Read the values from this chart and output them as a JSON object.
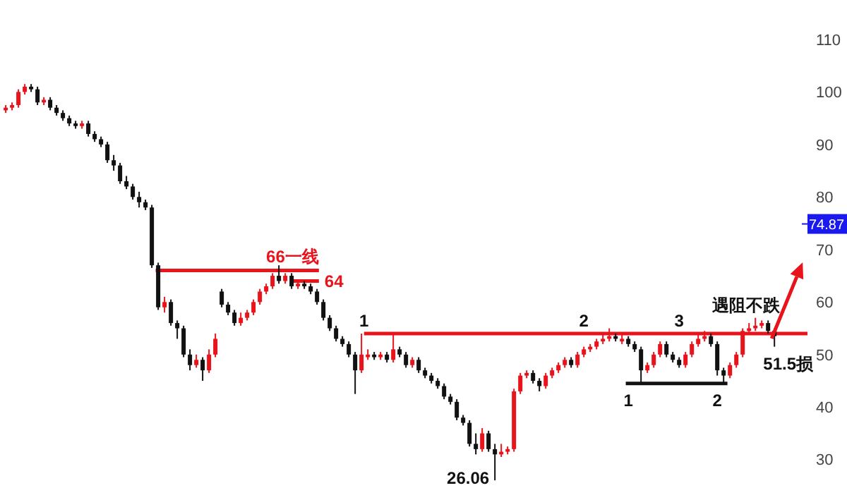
{
  "chart_data": {
    "type": "candlestick",
    "colors": [
      "#e8141c",
      "#e8141c",
      "#e8141c",
      "#e8141c",
      "#111111",
      "#111111",
      "#e8141c",
      "#111111",
      "#111111",
      "#111111",
      "#111111",
      "#111111",
      "#e8141c",
      "#111111",
      "#111111",
      "#111111",
      "#111111",
      "#111111",
      "#111111",
      "#111111",
      "#111111",
      "#111111",
      "#111111",
      "#111111",
      "#111111",
      "#e8141c",
      "#111111",
      "#111111",
      "#111111",
      "#111111",
      "#e8141c",
      "#111111",
      "#e8141c",
      "#e8141c",
      "#111111",
      "#111111",
      "#111111",
      "#e8141c",
      "#e8141c",
      "#e8141c",
      "#e8141c",
      "#e8141c",
      "#e8141c",
      "#111111",
      "#e8141c",
      "#111111",
      "#e8141c",
      "#111111",
      "#111111",
      "#111111",
      "#111111",
      "#111111",
      "#111111",
      "#111111",
      "#111111",
      "#111111",
      "#e8141c",
      "#e8141c",
      "#111111",
      "#e8141c",
      "#111111",
      "#e8141c",
      "#111111",
      "#111111",
      "#e8141c",
      "#111111",
      "#111111",
      "#111111",
      "#111111",
      "#111111",
      "#111111",
      "#111111",
      "#111111",
      "#111111",
      "#111111",
      "#e8141c",
      "#111111",
      "#111111",
      "#e8141c",
      "#e8141c",
      "#e8141c",
      "#e8141c",
      "#e8141c",
      "#111111",
      "#111111",
      "#e8141c",
      "#e8141c",
      "#e8141c",
      "#e8141c",
      "#111111",
      "#e8141c",
      "#e8141c",
      "#e8141c",
      "#e8141c",
      "#e8141c",
      "#e8141c",
      "#111111",
      "#e8141c",
      "#111111",
      "#111111",
      "#111111",
      "#e8141c",
      "#e8141c",
      "#e8141c",
      "#111111",
      "#111111",
      "#111111",
      "#e8141c",
      "#e8141c",
      "#e8141c",
      "#e8141c",
      "#111111",
      "#111111",
      "#111111",
      "#e8141c",
      "#e8141c",
      "#e8141c",
      "#e8141c",
      "#e8141c",
      "#e8141c",
      "#111111",
      "#111111"
    ],
    "categories": [
      null,
      null,
      null,
      null,
      null,
      null,
      null,
      null,
      null,
      null,
      null,
      null,
      null,
      null,
      null,
      null,
      null,
      null,
      null,
      null,
      null,
      null,
      null,
      null,
      null,
      null,
      null,
      null,
      null,
      null,
      null,
      null,
      null,
      null,
      null,
      null,
      null,
      null,
      null,
      null,
      null,
      null,
      null,
      null,
      null,
      null,
      null,
      null,
      null,
      null,
      null,
      null,
      null,
      null,
      null,
      null,
      null,
      null,
      null,
      null,
      null,
      null,
      null,
      null,
      null,
      null,
      null,
      null,
      null,
      null,
      null,
      null,
      null,
      null,
      null,
      null,
      null,
      null,
      null,
      null,
      null,
      null,
      null,
      null,
      null,
      null,
      null,
      null,
      null,
      null,
      null,
      null,
      null,
      null,
      null,
      null,
      null,
      null,
      null,
      null,
      null,
      null,
      null,
      null,
      null,
      null,
      null,
      null,
      null,
      null,
      null,
      null,
      null,
      null,
      null,
      null,
      null,
      null,
      null,
      null,
      null,
      null
    ],
    "ohlc": [
      [
        96.5,
        97.5,
        96,
        97
      ],
      [
        97,
        98,
        96.5,
        97.5
      ],
      [
        97.5,
        100.5,
        97,
        100
      ],
      [
        100,
        101.5,
        99.5,
        101
      ],
      [
        101,
        101.5,
        100,
        100.5
      ],
      [
        100.5,
        101,
        97.5,
        98
      ],
      [
        98,
        99,
        97.5,
        98.5
      ],
      [
        98.5,
        99,
        96.5,
        97
      ],
      [
        97,
        97.5,
        95.5,
        96
      ],
      [
        96,
        96.5,
        94.5,
        95
      ],
      [
        95,
        95.5,
        93.5,
        94
      ],
      [
        94,
        94.5,
        93,
        93.5
      ],
      [
        93.5,
        94.5,
        93,
        94
      ],
      [
        94,
        94.5,
        91.5,
        92
      ],
      [
        92,
        92.5,
        90.5,
        91
      ],
      [
        91,
        91.5,
        89.5,
        90
      ],
      [
        90,
        90.5,
        86.5,
        87
      ],
      [
        87,
        88,
        85,
        86
      ],
      [
        86,
        86.5,
        82.5,
        83
      ],
      [
        83,
        84,
        81.5,
        82
      ],
      [
        82,
        82.5,
        79.5,
        80
      ],
      [
        80,
        81,
        78,
        79
      ],
      [
        79,
        79.5,
        77.5,
        78
      ],
      [
        78,
        78.5,
        66.5,
        67
      ],
      [
        67,
        67.5,
        58.5,
        59
      ],
      [
        59,
        61,
        58,
        60
      ],
      [
        60,
        60.5,
        55.5,
        56
      ],
      [
        56,
        56.5,
        53,
        55
      ],
      [
        55,
        55.5,
        49.5,
        50
      ],
      [
        50,
        51,
        47,
        48
      ],
      [
        48,
        50,
        47.5,
        49
      ],
      [
        49,
        49.5,
        45,
        47
      ],
      [
        47,
        51,
        46.5,
        50
      ],
      [
        50,
        54,
        49.5,
        53
      ],
      [
        62,
        62.5,
        59,
        59.5
      ],
      [
        59.5,
        60,
        57.5,
        58
      ],
      [
        58,
        58.5,
        55.5,
        56
      ],
      [
        56,
        58,
        55.5,
        57
      ],
      [
        57,
        58.5,
        56.5,
        58
      ],
      [
        58,
        60.5,
        57.5,
        60
      ],
      [
        60,
        62.5,
        59.5,
        62
      ],
      [
        62,
        63.5,
        61.5,
        63
      ],
      [
        63,
        65.5,
        62.5,
        65
      ],
      [
        65,
        67,
        63.5,
        64
      ],
      [
        64,
        65.5,
        63.5,
        65
      ],
      [
        65,
        65.5,
        62.5,
        63
      ],
      [
        63,
        64,
        62.5,
        63.5
      ],
      [
        63.5,
        64,
        62.5,
        63
      ],
      [
        63,
        63.5,
        61.5,
        62
      ],
      [
        62,
        62.5,
        59.5,
        60
      ],
      [
        60,
        60.5,
        56.5,
        57
      ],
      [
        57,
        57.5,
        54.5,
        55
      ],
      [
        55,
        55.5,
        52.5,
        53
      ],
      [
        53,
        53.5,
        51.5,
        52
      ],
      [
        52,
        52.5,
        49.5,
        50
      ],
      [
        50,
        50.5,
        42.5,
        47
      ],
      [
        47,
        54,
        46.5,
        50
      ],
      [
        49.5,
        51,
        49,
        50
      ],
      [
        50,
        50.5,
        49,
        49.5
      ],
      [
        49.5,
        50.5,
        49,
        50
      ],
      [
        50,
        50.5,
        48.5,
        49
      ],
      [
        49,
        54,
        48.5,
        51
      ],
      [
        51,
        51.5,
        49.5,
        50
      ],
      [
        50,
        50.5,
        47.5,
        48
      ],
      [
        48,
        49.5,
        47.5,
        49
      ],
      [
        49,
        49.5,
        46.5,
        47
      ],
      [
        47,
        47.5,
        45.5,
        46
      ],
      [
        46,
        46.5,
        44.5,
        45
      ],
      [
        45,
        45.5,
        43.5,
        44
      ],
      [
        44,
        44.5,
        41.5,
        42
      ],
      [
        42,
        42.5,
        40.5,
        41
      ],
      [
        41,
        41.5,
        37.5,
        38
      ],
      [
        38,
        38.5,
        36.5,
        37
      ],
      [
        37,
        37.5,
        32.5,
        33
      ],
      [
        33,
        35,
        31,
        32
      ],
      [
        32,
        36,
        31.5,
        35
      ],
      [
        35,
        35.5,
        31.5,
        32
      ],
      [
        32,
        33,
        26.06,
        31
      ],
      [
        31,
        33,
        30.5,
        31.5
      ],
      [
        31.5,
        32.5,
        31,
        32
      ],
      [
        32,
        43.5,
        31.5,
        43
      ],
      [
        43,
        46.5,
        42.5,
        46
      ],
      [
        46,
        47,
        45.5,
        46.5
      ],
      [
        46.5,
        47,
        44.5,
        45
      ],
      [
        45,
        45.5,
        43,
        44
      ],
      [
        44,
        46.5,
        43.5,
        46
      ],
      [
        46,
        47.5,
        45.5,
        47
      ],
      [
        47,
        48.5,
        46.5,
        48
      ],
      [
        48,
        49.5,
        47.5,
        49
      ],
      [
        49,
        49.5,
        47.5,
        48
      ],
      [
        48,
        50.5,
        47.5,
        50
      ],
      [
        50,
        51.5,
        49.5,
        51
      ],
      [
        51,
        52,
        50.5,
        51.5
      ],
      [
        51.5,
        53,
        51,
        52.5
      ],
      [
        52.5,
        54,
        52,
        53
      ],
      [
        53,
        55,
        52.5,
        53.5
      ],
      [
        53.5,
        54,
        52.5,
        53
      ],
      [
        52.5,
        54,
        52,
        53
      ],
      [
        53,
        53.5,
        51.5,
        52
      ],
      [
        52,
        52.5,
        50.5,
        51
      ],
      [
        51,
        51.5,
        44.5,
        47
      ],
      [
        47,
        48.5,
        46.5,
        48
      ],
      [
        48,
        50.5,
        47.5,
        50
      ],
      [
        50,
        52.5,
        49.5,
        52
      ],
      [
        52,
        52.5,
        49.5,
        50
      ],
      [
        50,
        50.5,
        48.5,
        49
      ],
      [
        49,
        49.5,
        47.5,
        48
      ],
      [
        48,
        50.5,
        47.5,
        50
      ],
      [
        50,
        52.5,
        49.5,
        52
      ],
      [
        52,
        54,
        51.5,
        53
      ],
      [
        53,
        54.5,
        52.5,
        53.5
      ],
      [
        53.5,
        54,
        51.5,
        52
      ],
      [
        52,
        52.5,
        46,
        47
      ],
      [
        47,
        47.5,
        44.5,
        46
      ],
      [
        46,
        48.5,
        45.5,
        48
      ],
      [
        48,
        50.5,
        47.5,
        50
      ],
      [
        50,
        55,
        49.5,
        54.5
      ],
      [
        54.5,
        56,
        54,
        55
      ],
      [
        55,
        57,
        54.5,
        55.5
      ],
      [
        55.5,
        56.5,
        55,
        56
      ],
      [
        56,
        56.5,
        54,
        54.5
      ],
      [
        54.5,
        55,
        51.5,
        53.5
      ]
    ],
    "annotations": [
      {
        "text": "1",
        "y": 54
      },
      {
        "text": "2",
        "y": 54
      },
      {
        "text": "3",
        "y": 54
      },
      "遇阻不跌",
      "51.5损",
      {
        "text": "1",
        "y": 44.5
      },
      {
        "text": "2",
        "y": 44.5
      },
      "26.06"
    ],
    "ref_lines": [
      {
        "axis": "y",
        "value": 66,
        "label": "66一线",
        "color": "#e8141c"
      },
      {
        "axis": "y",
        "value": 64,
        "label": "64",
        "color": "#e8141c"
      },
      {
        "axis": "y",
        "value": 54,
        "color": "#e8141c"
      },
      {
        "axis": "y",
        "value": 44.5,
        "color": "#111111"
      },
      {
        "axis": "y",
        "value": 74.87,
        "label": "74.87",
        "color": "#1a1aee"
      }
    ],
    "ylim": [
      24.6,
      117.5
    ],
    "yticks": [
      30,
      40,
      50,
      60,
      70,
      80,
      90,
      100,
      110
    ],
    "tick_labels": "y"
  }
}
